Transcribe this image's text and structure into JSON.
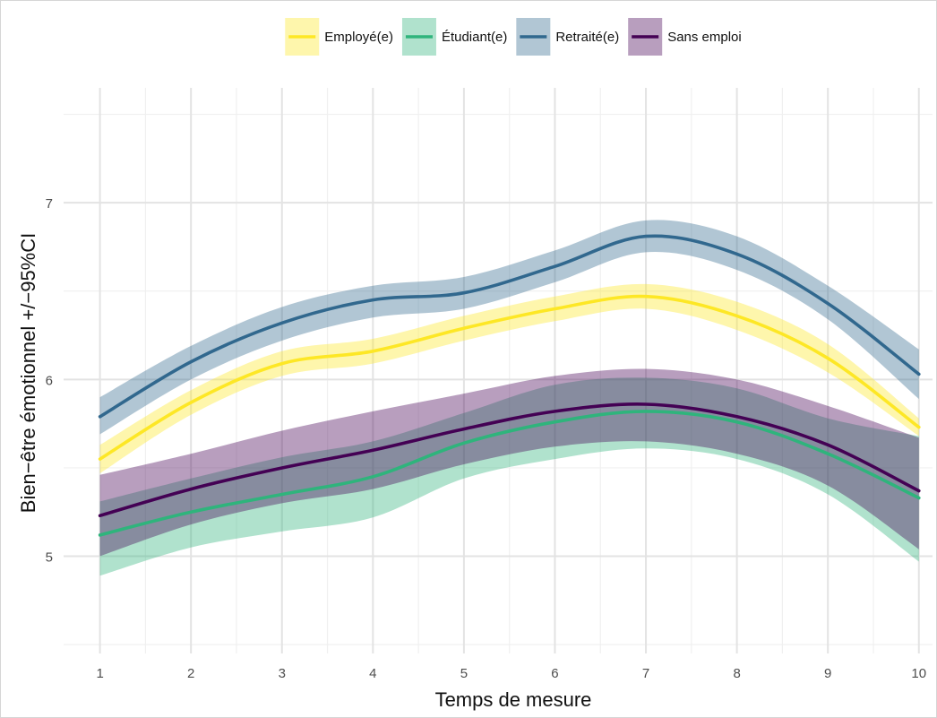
{
  "chart_data": {
    "type": "line",
    "xlabel": "Temps de mesure",
    "ylabel": "Bien−être émotionnel +/−95%CI",
    "x": [
      1,
      2,
      3,
      4,
      5,
      6,
      7,
      8,
      9,
      10
    ],
    "x_ticks": [
      "1",
      "2",
      "3",
      "4",
      "5",
      "6",
      "7",
      "8",
      "9",
      "10"
    ],
    "y_ticks": [
      "5",
      "6",
      "7"
    ],
    "xlim": [
      0.6,
      10.15
    ],
    "ylim": [
      4.45,
      7.65
    ],
    "grid": true,
    "legend_position": "top",
    "series": [
      {
        "name": "Employé(e)",
        "color": "#FDE725",
        "values": [
          5.55,
          5.87,
          6.09,
          6.16,
          6.29,
          6.4,
          6.47,
          6.36,
          6.12,
          5.73
        ],
        "lower": [
          5.47,
          5.8,
          6.02,
          6.09,
          6.22,
          6.33,
          6.4,
          6.28,
          6.04,
          5.68
        ],
        "upper": [
          5.63,
          5.94,
          6.16,
          6.23,
          6.36,
          6.47,
          6.54,
          6.44,
          6.2,
          5.78
        ]
      },
      {
        "name": "Étudiant(e)",
        "color": "#2FB47C",
        "values": [
          5.12,
          5.25,
          5.35,
          5.45,
          5.64,
          5.76,
          5.82,
          5.76,
          5.58,
          5.33
        ],
        "lower": [
          4.89,
          5.05,
          5.14,
          5.22,
          5.44,
          5.55,
          5.61,
          5.55,
          5.35,
          4.97
        ],
        "upper": [
          5.31,
          5.44,
          5.56,
          5.65,
          5.81,
          5.97,
          6.01,
          5.95,
          5.78,
          5.68
        ]
      },
      {
        "name": "Retraité(e)",
        "color": "#31688E",
        "values": [
          5.79,
          6.1,
          6.32,
          6.45,
          6.49,
          6.64,
          6.81,
          6.71,
          6.43,
          6.03
        ],
        "lower": [
          5.69,
          6.0,
          6.22,
          6.35,
          6.4,
          6.55,
          6.72,
          6.62,
          6.34,
          5.89
        ],
        "upper": [
          5.9,
          6.19,
          6.41,
          6.53,
          6.58,
          6.73,
          6.9,
          6.81,
          6.53,
          6.17
        ]
      },
      {
        "name": "Sans emploi",
        "color": "#440154",
        "values": [
          5.23,
          5.38,
          5.5,
          5.6,
          5.72,
          5.82,
          5.86,
          5.79,
          5.63,
          5.37
        ],
        "lower": [
          5.0,
          5.18,
          5.3,
          5.38,
          5.52,
          5.62,
          5.65,
          5.58,
          5.4,
          5.04
        ],
        "upper": [
          5.46,
          5.58,
          5.71,
          5.82,
          5.92,
          6.02,
          6.06,
          6.0,
          5.85,
          5.67
        ]
      }
    ]
  }
}
